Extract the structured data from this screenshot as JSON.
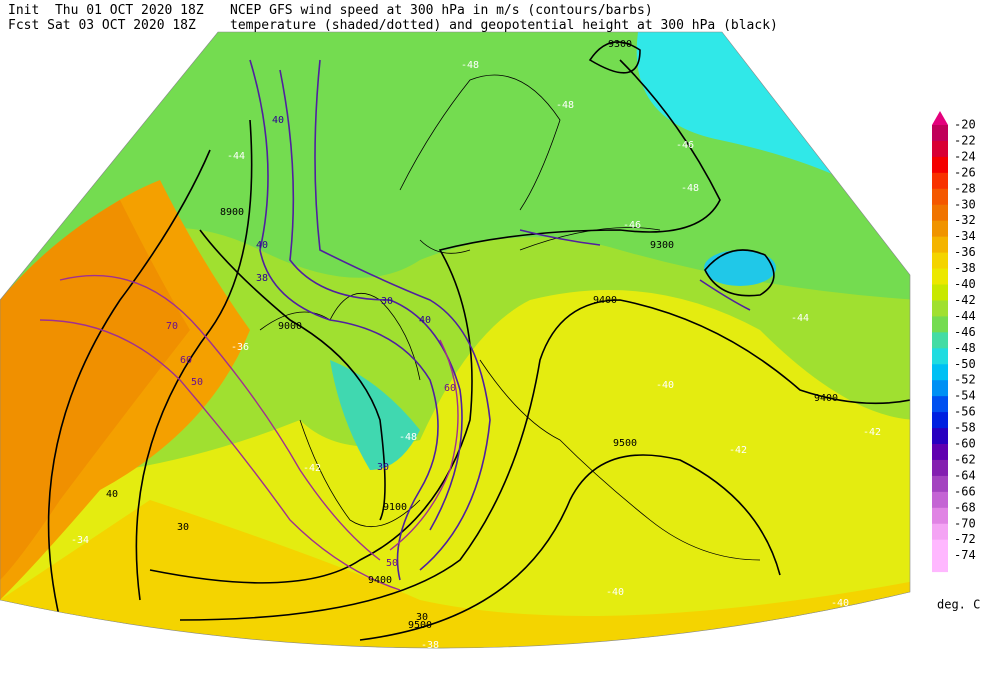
{
  "header": {
    "init": "Init  Thu 01 OCT 2020 18Z",
    "fcst": "Fcst Sat 03 OCT 2020 18Z",
    "title1": "NCEP GFS wind speed at 300 hPa in m/s (contours/barbs)",
    "title2": "temperature (shaded/dotted) and geopotential height at 300 hPa (black)"
  },
  "legend": {
    "levels": [
      -20,
      -22,
      -24,
      -26,
      -28,
      -30,
      -32,
      -34,
      -36,
      -38,
      -40,
      -42,
      -44,
      -46,
      -48,
      -50,
      -52,
      -54,
      -56,
      -58,
      -60,
      -62,
      -64,
      -66,
      -68,
      -70,
      -72,
      -74
    ],
    "colors": [
      "#e4007c",
      "#c0005a",
      "#d80034",
      "#f40000",
      "#f83200",
      "#f45800",
      "#f07400",
      "#f09400",
      "#f4b400",
      "#f4d400",
      "#ece800",
      "#c8e800",
      "#a0e030",
      "#74dc50",
      "#44dca4",
      "#20dce0",
      "#00c0f4",
      "#0090f4",
      "#0050f0",
      "#0020e0",
      "#2800c0",
      "#6000b0",
      "#8420b0",
      "#a444c0",
      "#c464d4",
      "#e084e4",
      "#f4a4f4",
      "#ffb8ff"
    ],
    "unit": "deg. C"
  },
  "map": {
    "labels": [
      9300,
      8900,
      9400,
      9500,
      9000,
      9100,
      9300,
      9400,
      9500,
      9400,
      -48,
      -44,
      -48,
      -46,
      -48,
      -44,
      -40,
      -42,
      -36,
      -34,
      -38,
      -40,
      -42,
      -42,
      -40,
      -46,
      -48,
      40,
      40,
      38,
      30,
      40,
      60,
      70,
      60,
      50,
      30,
      40,
      30,
      50,
      30
    ]
  }
}
